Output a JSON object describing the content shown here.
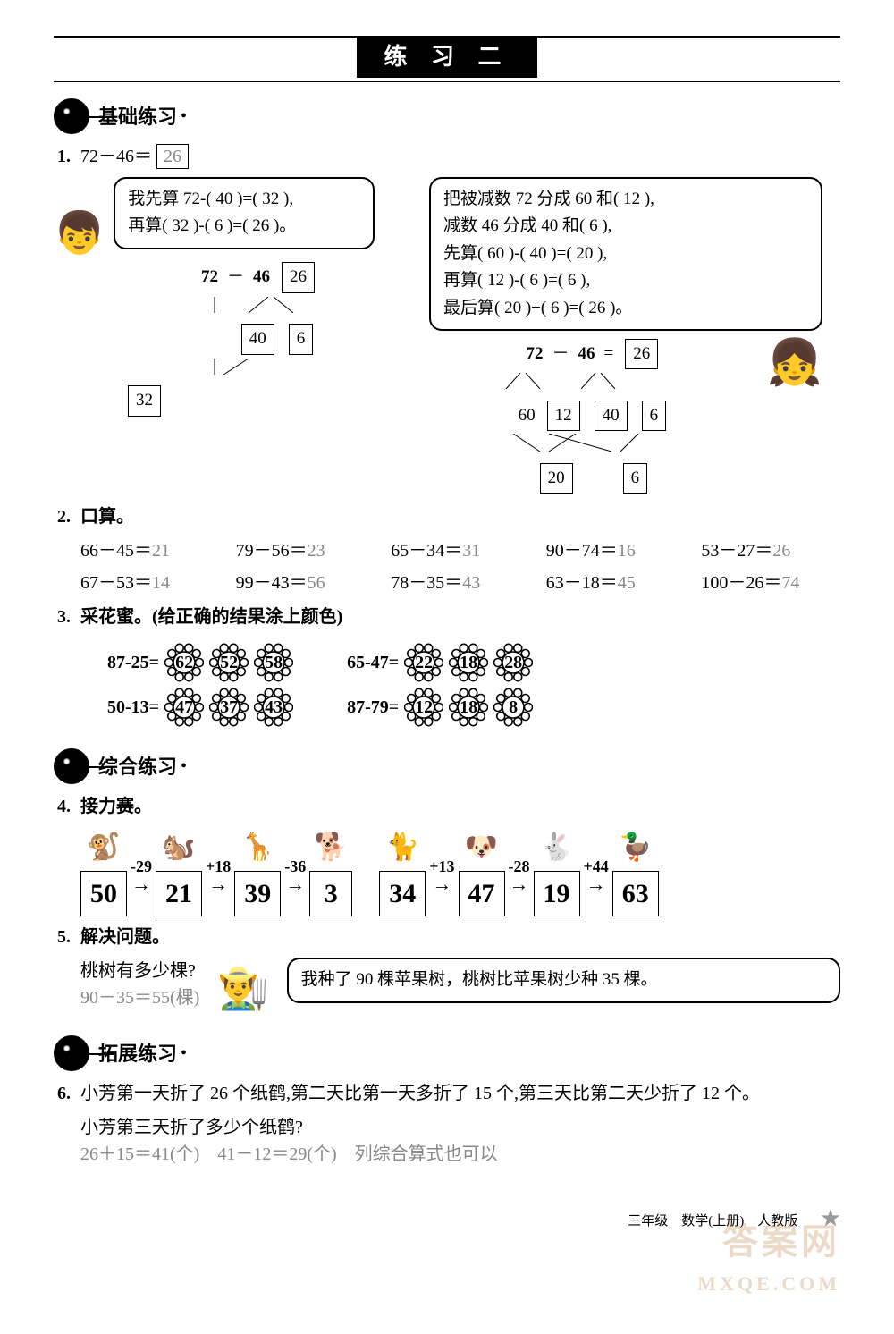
{
  "header": {
    "title": "练 习 二"
  },
  "sections": {
    "basic": "基础练习",
    "comprehensive": "综合练习",
    "extension": "拓展练习"
  },
  "q1": {
    "num": "1.",
    "expr": "72－46＝",
    "answer": "26",
    "left_bubble_l1": "我先算 72-(  40  )=(  32  ),",
    "left_bubble_l2": "再算(  32  )-(  6  )=(  26  )。",
    "left_tree": {
      "top": [
        "72",
        "－",
        "46",
        "26"
      ],
      "mid": [
        "40",
        "6"
      ],
      "bottom": [
        "32"
      ]
    },
    "right_bubble": [
      "把被减数 72 分成 60 和(  12  ),",
      "减数 46 分成 40 和(  6  ),",
      "先算(  60  )-(  40  )=(  20  ),",
      "再算(  12  )-(  6  )=(  6  ),",
      "最后算(  20  )+(  6  )=(  26  )。"
    ],
    "right_tree": {
      "top": [
        "72",
        "－",
        "46",
        "=",
        "26"
      ],
      "mid": [
        "60",
        "12",
        "40",
        "6"
      ],
      "bottom": [
        "20",
        "6"
      ]
    }
  },
  "q2": {
    "num": "2.",
    "title": "口算。",
    "items": [
      {
        "e": "66－45＝",
        "a": "21"
      },
      {
        "e": "79－56＝",
        "a": "23"
      },
      {
        "e": "65－34＝",
        "a": "31"
      },
      {
        "e": "90－74＝",
        "a": "16"
      },
      {
        "e": "53－27＝",
        "a": "26"
      },
      {
        "e": "67－53＝",
        "a": "14"
      },
      {
        "e": "99－43＝",
        "a": "56"
      },
      {
        "e": "78－35＝",
        "a": "43"
      },
      {
        "e": "63－18＝",
        "a": "45"
      },
      {
        "e": "100－26＝",
        "a": "74"
      }
    ]
  },
  "q3": {
    "num": "3.",
    "title": "采花蜜。(给正确的结果涂上颜色)",
    "rows": [
      {
        "e": "87-25=",
        "opts": [
          "62",
          "52",
          "58"
        ]
      },
      {
        "e": "65-47=",
        "opts": [
          "22",
          "18",
          "28"
        ]
      },
      {
        "e": "50-13=",
        "opts": [
          "47",
          "37",
          "43"
        ]
      },
      {
        "e": "87-79=",
        "opts": [
          "12",
          "18",
          "8"
        ]
      }
    ]
  },
  "q4": {
    "num": "4.",
    "title": "接力赛。",
    "chain1": {
      "animals": [
        "🐒",
        "🐿️",
        "🦒",
        "🐕"
      ],
      "ops": [
        "-29",
        "+18",
        "-36"
      ],
      "boxes": [
        "50",
        "21",
        "39",
        "3"
      ]
    },
    "chain2": {
      "animals": [
        "🐈",
        "🐶",
        "🐇",
        "🦆"
      ],
      "ops": [
        "+13",
        "-28",
        "+44"
      ],
      "boxes": [
        "34",
        "47",
        "19",
        "63"
      ]
    }
  },
  "q5": {
    "num": "5.",
    "title": "解决问题。",
    "question": "桃树有多少棵?",
    "answer": "90－35＝55(棵)",
    "farmer_says": "我种了 90 棵苹果树，桃树比苹果树少种 35 棵。"
  },
  "q6": {
    "num": "6.",
    "line1": "小芳第一天折了 26 个纸鹤,第二天比第一天多折了 15 个,第三天比第二天少折了 12 个。",
    "line2": "小芳第三天折了多少个纸鹤?",
    "answer": "26＋15＝41(个)　41－12＝29(个)　列综合算式也可以"
  },
  "footer": {
    "text": "三年级　数学(上册)　人教版",
    "watermark_top": "答案网",
    "watermark_bottom": "MXQE.COM"
  },
  "colors": {
    "ink": "#000000",
    "answer": "#888888",
    "bg": "#ffffff"
  }
}
